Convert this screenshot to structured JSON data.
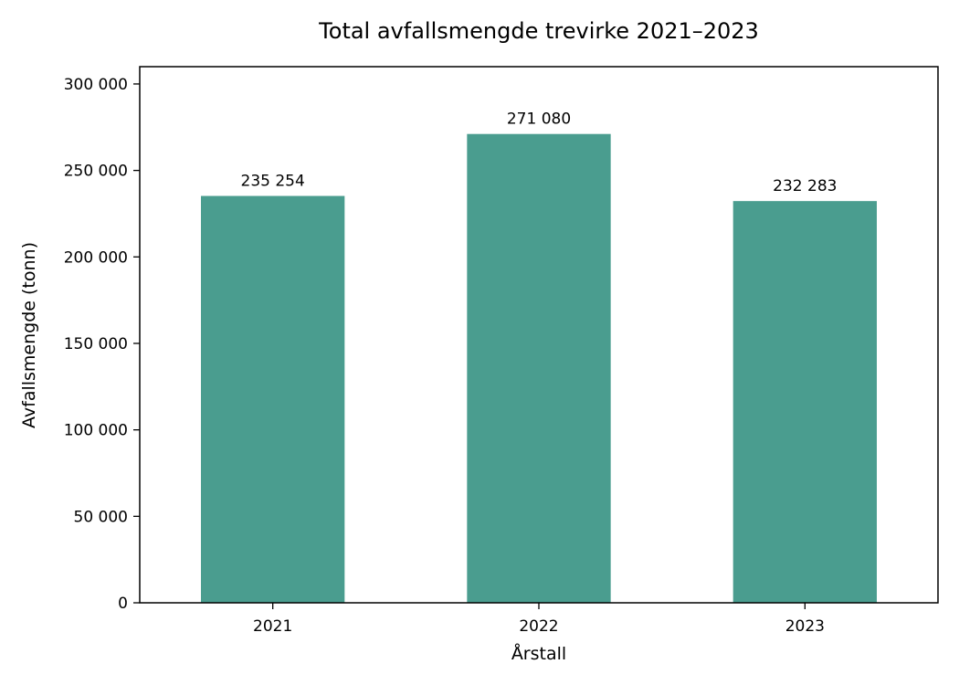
{
  "chart_data": {
    "type": "bar",
    "title": "Total avfallsmengde trevirke 2021–2023",
    "xlabel": "Årstall",
    "ylabel": "Avfallsmengde (tonn)",
    "categories": [
      "2021",
      "2022",
      "2023"
    ],
    "values": [
      235254,
      271080,
      232283
    ],
    "value_labels": [
      "235 254",
      "271 080",
      "232 283"
    ],
    "ylim": [
      0,
      310000
    ],
    "yticks": [
      0,
      50000,
      100000,
      150000,
      200000,
      250000,
      300000
    ],
    "ytick_labels": [
      "0",
      "50 000",
      "100 000",
      "150 000",
      "200 000",
      "250 000",
      "300 000"
    ],
    "bar_color": "#4a9d8f",
    "grid": false,
    "legend": false
  }
}
